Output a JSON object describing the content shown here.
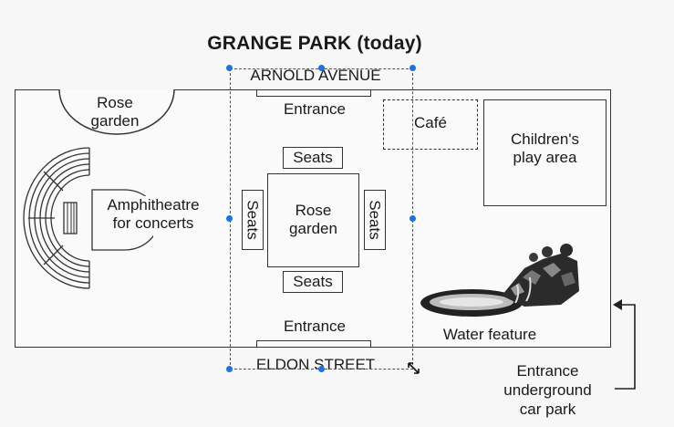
{
  "map": {
    "title": "GRANGE PARK (today)",
    "streets": {
      "north": "ARNOLD AVENUE",
      "south": "ELDON STREET"
    },
    "features": {
      "rose_garden_north": "Rose\ngarden",
      "entrance_north": "Entrance",
      "cafe": "Café",
      "childrens_play_area": "Children's\nplay area",
      "amphitheatre": "Amphitheatre\nfor concerts",
      "rose_garden_centre": "Rose\ngarden",
      "seats_top": "Seats",
      "seats_bottom": "Seats",
      "seats_left": "Seats",
      "seats_right": "Seats",
      "entrance_south": "Entrance",
      "water_feature": "Water feature",
      "car_park_entrance": "Entrance\nunderground\ncar park"
    },
    "colors": {
      "line": "#333333",
      "selection_handle": "#1a73e8",
      "background": "#f7f7f7"
    }
  }
}
